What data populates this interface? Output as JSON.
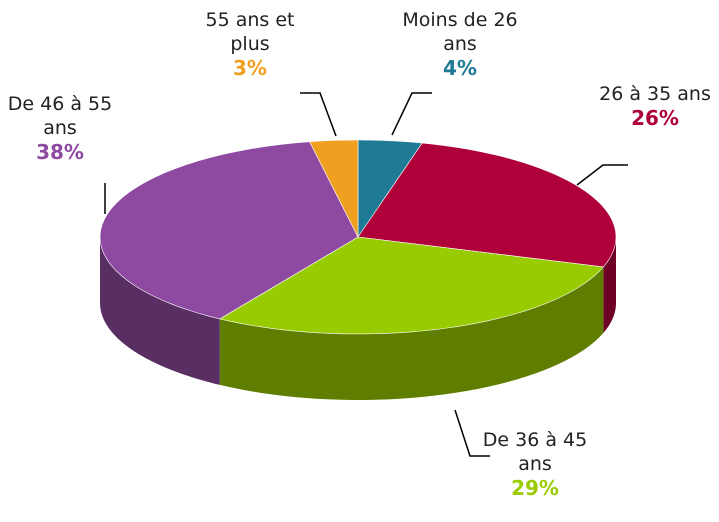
{
  "chart_data": {
    "type": "pie3d",
    "categories": [
      "Moins de 26 ans",
      "26 à 35 ans",
      "De 36 à 45 ans",
      "De 46 à 55 ans",
      "55 ans et plus"
    ],
    "values": [
      4,
      26,
      29,
      38,
      3
    ],
    "value_labels": [
      "4%",
      "26%",
      "29%",
      "38%",
      "3%"
    ],
    "colors": [
      "#1f7a96",
      "#b0003a",
      "#99cc00",
      "#8e4aa0",
      "#f0a020"
    ]
  }
}
